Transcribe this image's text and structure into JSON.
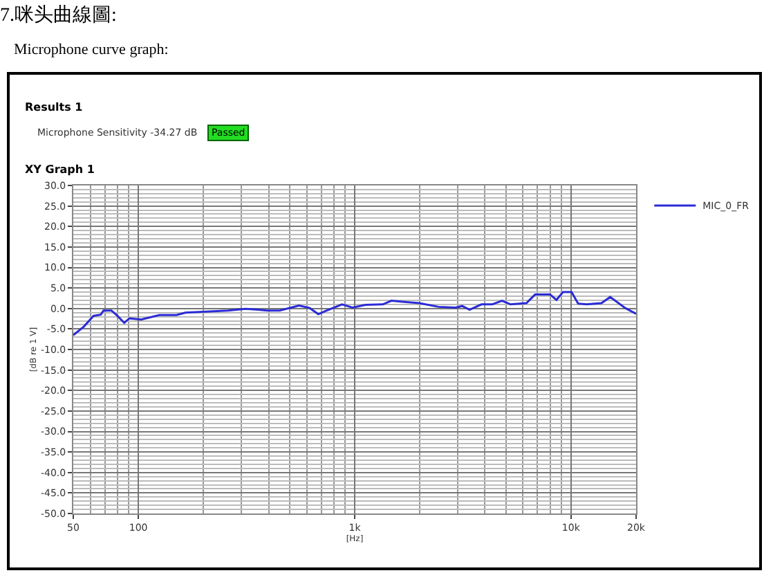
{
  "chart_data": {
    "type": "line",
    "title": "7.咪头曲線圖:",
    "subtitle": "Microphone curve graph:",
    "annotations": [
      "Results 1",
      "Microphone Sensitivity  -34.27  dB",
      "Passed",
      "XY Graph 1"
    ],
    "xlabel": "[Hz]",
    "ylabel": "[dB re 1 V]",
    "series": [
      {
        "name": "MIC_0_FR",
        "color": "#2b2bd6",
        "x": [
          50,
          56,
          62,
          67,
          69,
          75,
          80,
          86,
          91,
          103,
          125,
          150,
          165,
          260,
          313,
          358,
          393,
          450,
          553,
          620,
          679,
          727,
          874,
          979,
          1122,
          1349,
          1477,
          1694,
          1988,
          2441,
          2931,
          3141,
          3396,
          3856,
          4318,
          4799,
          5260,
          6223,
          6823,
          8000,
          8570,
          9183,
          10060,
          10790,
          11810,
          13840,
          15170,
          17820,
          20000
        ],
        "values": [
          -6.5,
          -4.4,
          -1.8,
          -1.5,
          -0.5,
          -0.5,
          -1.8,
          -3.5,
          -2.4,
          -2.7,
          -1.6,
          -1.6,
          -1.0,
          -0.5,
          -0.1,
          -0.3,
          -0.5,
          -0.5,
          0.7,
          0.1,
          -1.4,
          -0.7,
          1.0,
          0.2,
          0.9,
          1.0,
          1.9,
          1.6,
          1.3,
          0.4,
          0.2,
          0.6,
          -0.3,
          1.0,
          1.0,
          1.9,
          1.0,
          1.3,
          3.4,
          3.4,
          2.1,
          4.0,
          4.0,
          1.2,
          1.0,
          1.3,
          2.8,
          0.1,
          -1.3
        ]
      }
    ],
    "log": "x",
    "xlim": [
      50,
      20000
    ],
    "xticks": [
      50,
      100,
      {
        "value": 1000,
        "label": "1k"
      },
      {
        "value": 10000,
        "label": "10k"
      },
      {
        "value": 20000,
        "label": "20k"
      }
    ],
    "ylim": [
      -50,
      30
    ],
    "yticks": [
      {
        "value": -50,
        "label": "-50.0"
      },
      {
        "value": -45,
        "label": "-45.0"
      },
      {
        "value": -40,
        "label": "-40.0"
      },
      {
        "value": -35,
        "label": "-35.0"
      },
      {
        "value": -30,
        "label": "-30.0"
      },
      {
        "value": -25,
        "label": "-25.0"
      },
      {
        "value": -20,
        "label": "-20.0"
      },
      {
        "value": -15,
        "label": "-15.0"
      },
      {
        "value": -10,
        "label": "-10.0"
      },
      {
        "value": -5,
        "label": "-5.0"
      },
      {
        "value": 0,
        "label": "0.0"
      },
      {
        "value": 5,
        "label": "5.0"
      },
      {
        "value": 10,
        "label": "10.0"
      },
      {
        "value": 15,
        "label": "15.0"
      },
      {
        "value": 20,
        "label": "20.0"
      },
      {
        "value": 25,
        "label": "25.0"
      },
      {
        "value": 30,
        "label": "30.0"
      }
    ],
    "grid": true,
    "legend": "top right",
    "marker": "none",
    "line_style": "solid"
  }
}
